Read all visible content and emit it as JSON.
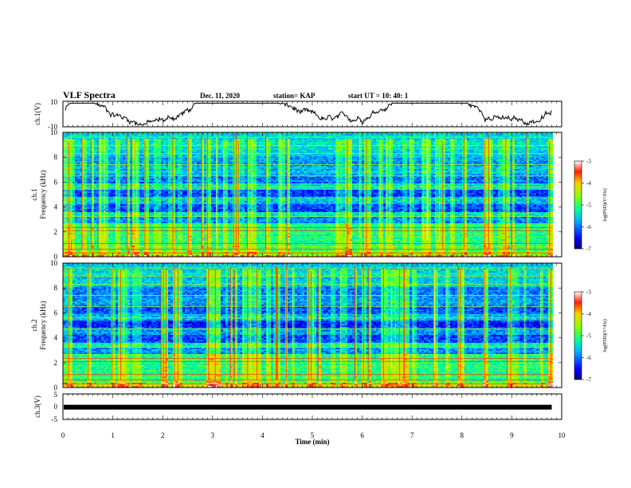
{
  "header": {
    "title": "VLF Spectra",
    "date": "Dec. 11, 2020",
    "station": "station= KAP",
    "start": "start  UT =   10: 40: 1"
  },
  "chart_data": [
    {
      "type": "line",
      "panel": "ch1-waveform",
      "ylabel": "ch.1(V)",
      "ylim": [
        -10,
        10
      ],
      "yticks": [
        "10",
        "-10"
      ],
      "xlim": [
        0,
        10
      ],
      "color": "#000000"
    },
    {
      "type": "heatmap",
      "panel": "ch1-spectrogram",
      "ylabel": "ch.1\nFrequency (kHz)",
      "ylabel_lines": [
        "ch.1",
        "Frequency (kHz)"
      ],
      "ylim": [
        0,
        10
      ],
      "yticks": [
        "0",
        "2",
        "4",
        "6",
        "8",
        "10"
      ],
      "xlim": [
        0,
        10
      ],
      "data_end_min": 9.8,
      "colorbar": {
        "label": "log(PSD)(V²/Hz)",
        "range": [
          -7,
          -3
        ],
        "ticks": [
          "-3",
          "-4",
          "-5",
          "-6",
          "-7"
        ]
      }
    },
    {
      "type": "heatmap",
      "panel": "ch2-spectrogram",
      "ylabel": "ch.2\nFrequency (kHz)",
      "ylabel_lines": [
        "ch.2",
        "Frequency (kHz)"
      ],
      "ylim": [
        0,
        10
      ],
      "yticks": [
        "0",
        "2",
        "4",
        "6",
        "8",
        "10"
      ],
      "xlim": [
        0,
        10
      ],
      "data_end_min": 9.8,
      "colorbar": {
        "label": "log(PSD)(V²/Hz)",
        "range": [
          -7,
          -3
        ],
        "ticks": [
          "-3",
          "-4",
          "-5",
          "-6",
          "-7"
        ]
      }
    },
    {
      "type": "line",
      "panel": "ch3-waveform",
      "ylabel": "ch.3(V)",
      "ylim": [
        -5,
        5
      ],
      "yticks": [
        "5",
        "0",
        "-5"
      ],
      "xlim": [
        0,
        10
      ],
      "level": -0.2,
      "color": "#000000"
    }
  ],
  "xaxis": {
    "label": "Time  (min)",
    "ticks": [
      "0",
      "1",
      "2",
      "3",
      "4",
      "5",
      "6",
      "7",
      "8",
      "9",
      "10"
    ]
  }
}
